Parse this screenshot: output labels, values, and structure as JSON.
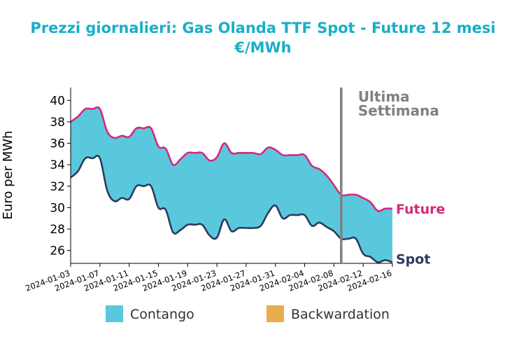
{
  "chart_data": {
    "type": "area",
    "title": "Prezzi giornalieri: Gas Olanda TTF Spot - Future 12 mesi",
    "subtitle": "€/MWh",
    "xlabel": "",
    "ylabel": "Euro per MWh",
    "ylim": [
      24.8,
      41.2
    ],
    "yticks": [
      26,
      28,
      30,
      32,
      34,
      36,
      38,
      40
    ],
    "xlim": [
      "2024-01-03",
      "2024-02-16"
    ],
    "xticks": [
      "2024-01-03",
      "2024-01-07",
      "2024-01-11",
      "2024-01-15",
      "2024-01-19",
      "2024-01-23",
      "2024-01-27",
      "2024-01-31",
      "2024-02-04",
      "2024-02-08",
      "2024-02-12",
      "2024-02-16"
    ],
    "grid": false,
    "series": [
      {
        "name": "Future",
        "color": "#d6287b",
        "points": [
          [
            "2024-01-03",
            38.0
          ],
          [
            "2024-01-04",
            38.5
          ],
          [
            "2024-01-05",
            39.2
          ],
          [
            "2024-01-06",
            39.2
          ],
          [
            "2024-01-07",
            39.2
          ],
          [
            "2024-01-08",
            37.1
          ],
          [
            "2024-01-09",
            36.5
          ],
          [
            "2024-01-10",
            36.7
          ],
          [
            "2024-01-11",
            36.6
          ],
          [
            "2024-01-12",
            37.4
          ],
          [
            "2024-01-13",
            37.4
          ],
          [
            "2024-01-14",
            37.4
          ],
          [
            "2024-01-15",
            35.7
          ],
          [
            "2024-01-16",
            35.5
          ],
          [
            "2024-01-17",
            34.0
          ],
          [
            "2024-01-18",
            34.5
          ],
          [
            "2024-01-19",
            35.1
          ],
          [
            "2024-01-20",
            35.1
          ],
          [
            "2024-01-21",
            35.1
          ],
          [
            "2024-01-22",
            34.4
          ],
          [
            "2024-01-23",
            34.7
          ],
          [
            "2024-01-24",
            36.0
          ],
          [
            "2024-01-25",
            35.1
          ],
          [
            "2024-01-26",
            35.1
          ],
          [
            "2024-01-27",
            35.1
          ],
          [
            "2024-01-28",
            35.1
          ],
          [
            "2024-01-29",
            35.0
          ],
          [
            "2024-01-30",
            35.6
          ],
          [
            "2024-01-31",
            35.4
          ],
          [
            "2024-02-01",
            34.9
          ],
          [
            "2024-02-02",
            34.9
          ],
          [
            "2024-02-03",
            34.9
          ],
          [
            "2024-02-04",
            34.9
          ],
          [
            "2024-02-05",
            33.9
          ],
          [
            "2024-02-06",
            33.6
          ],
          [
            "2024-02-07",
            33.0
          ],
          [
            "2024-02-08",
            32.1
          ],
          [
            "2024-02-09",
            31.2
          ],
          [
            "2024-02-10",
            31.2
          ],
          [
            "2024-02-11",
            31.2
          ],
          [
            "2024-02-12",
            30.9
          ],
          [
            "2024-02-13",
            30.5
          ],
          [
            "2024-02-14",
            29.7
          ],
          [
            "2024-02-15",
            29.9
          ],
          [
            "2024-02-16",
            29.9
          ]
        ]
      },
      {
        "name": "Spot",
        "color": "#2b3a5e",
        "points": [
          [
            "2024-01-03",
            32.8
          ],
          [
            "2024-01-04",
            33.4
          ],
          [
            "2024-01-05",
            34.6
          ],
          [
            "2024-01-06",
            34.6
          ],
          [
            "2024-01-07",
            34.6
          ],
          [
            "2024-01-08",
            31.6
          ],
          [
            "2024-01-09",
            30.6
          ],
          [
            "2024-01-10",
            30.9
          ],
          [
            "2024-01-11",
            30.8
          ],
          [
            "2024-01-12",
            32.0
          ],
          [
            "2024-01-13",
            32.0
          ],
          [
            "2024-01-14",
            32.0
          ],
          [
            "2024-01-15",
            30.0
          ],
          [
            "2024-01-16",
            29.8
          ],
          [
            "2024-01-17",
            27.7
          ],
          [
            "2024-01-18",
            27.9
          ],
          [
            "2024-01-19",
            28.4
          ],
          [
            "2024-01-20",
            28.4
          ],
          [
            "2024-01-21",
            28.4
          ],
          [
            "2024-01-22",
            27.4
          ],
          [
            "2024-01-23",
            27.2
          ],
          [
            "2024-01-24",
            28.9
          ],
          [
            "2024-01-25",
            27.8
          ],
          [
            "2024-01-26",
            28.1
          ],
          [
            "2024-01-27",
            28.1
          ],
          [
            "2024-01-28",
            28.1
          ],
          [
            "2024-01-29",
            28.3
          ],
          [
            "2024-01-30",
            29.5
          ],
          [
            "2024-01-31",
            30.2
          ],
          [
            "2024-02-01",
            29.0
          ],
          [
            "2024-02-02",
            29.3
          ],
          [
            "2024-02-03",
            29.3
          ],
          [
            "2024-02-04",
            29.3
          ],
          [
            "2024-02-05",
            28.3
          ],
          [
            "2024-02-06",
            28.6
          ],
          [
            "2024-02-07",
            28.2
          ],
          [
            "2024-02-08",
            27.8
          ],
          [
            "2024-02-09",
            27.1
          ],
          [
            "2024-02-10",
            27.1
          ],
          [
            "2024-02-11",
            27.1
          ],
          [
            "2024-02-12",
            25.7
          ],
          [
            "2024-02-13",
            25.4
          ],
          [
            "2024-02-14",
            24.9
          ],
          [
            "2024-02-15",
            25.1
          ],
          [
            "2024-02-16",
            24.9
          ]
        ]
      }
    ],
    "fills": [
      {
        "name": "Contango",
        "color": "#5ac8dc"
      },
      {
        "name": "Backwardation",
        "color": "#e9ad4c"
      }
    ],
    "annotations": {
      "last_week_line_date": "2024-02-09",
      "last_week_line_color": "#808080",
      "last_week_label": [
        "Ultima",
        "Settimana"
      ]
    },
    "legend_placement": "bottom",
    "title_color": "#1aaec8"
  }
}
